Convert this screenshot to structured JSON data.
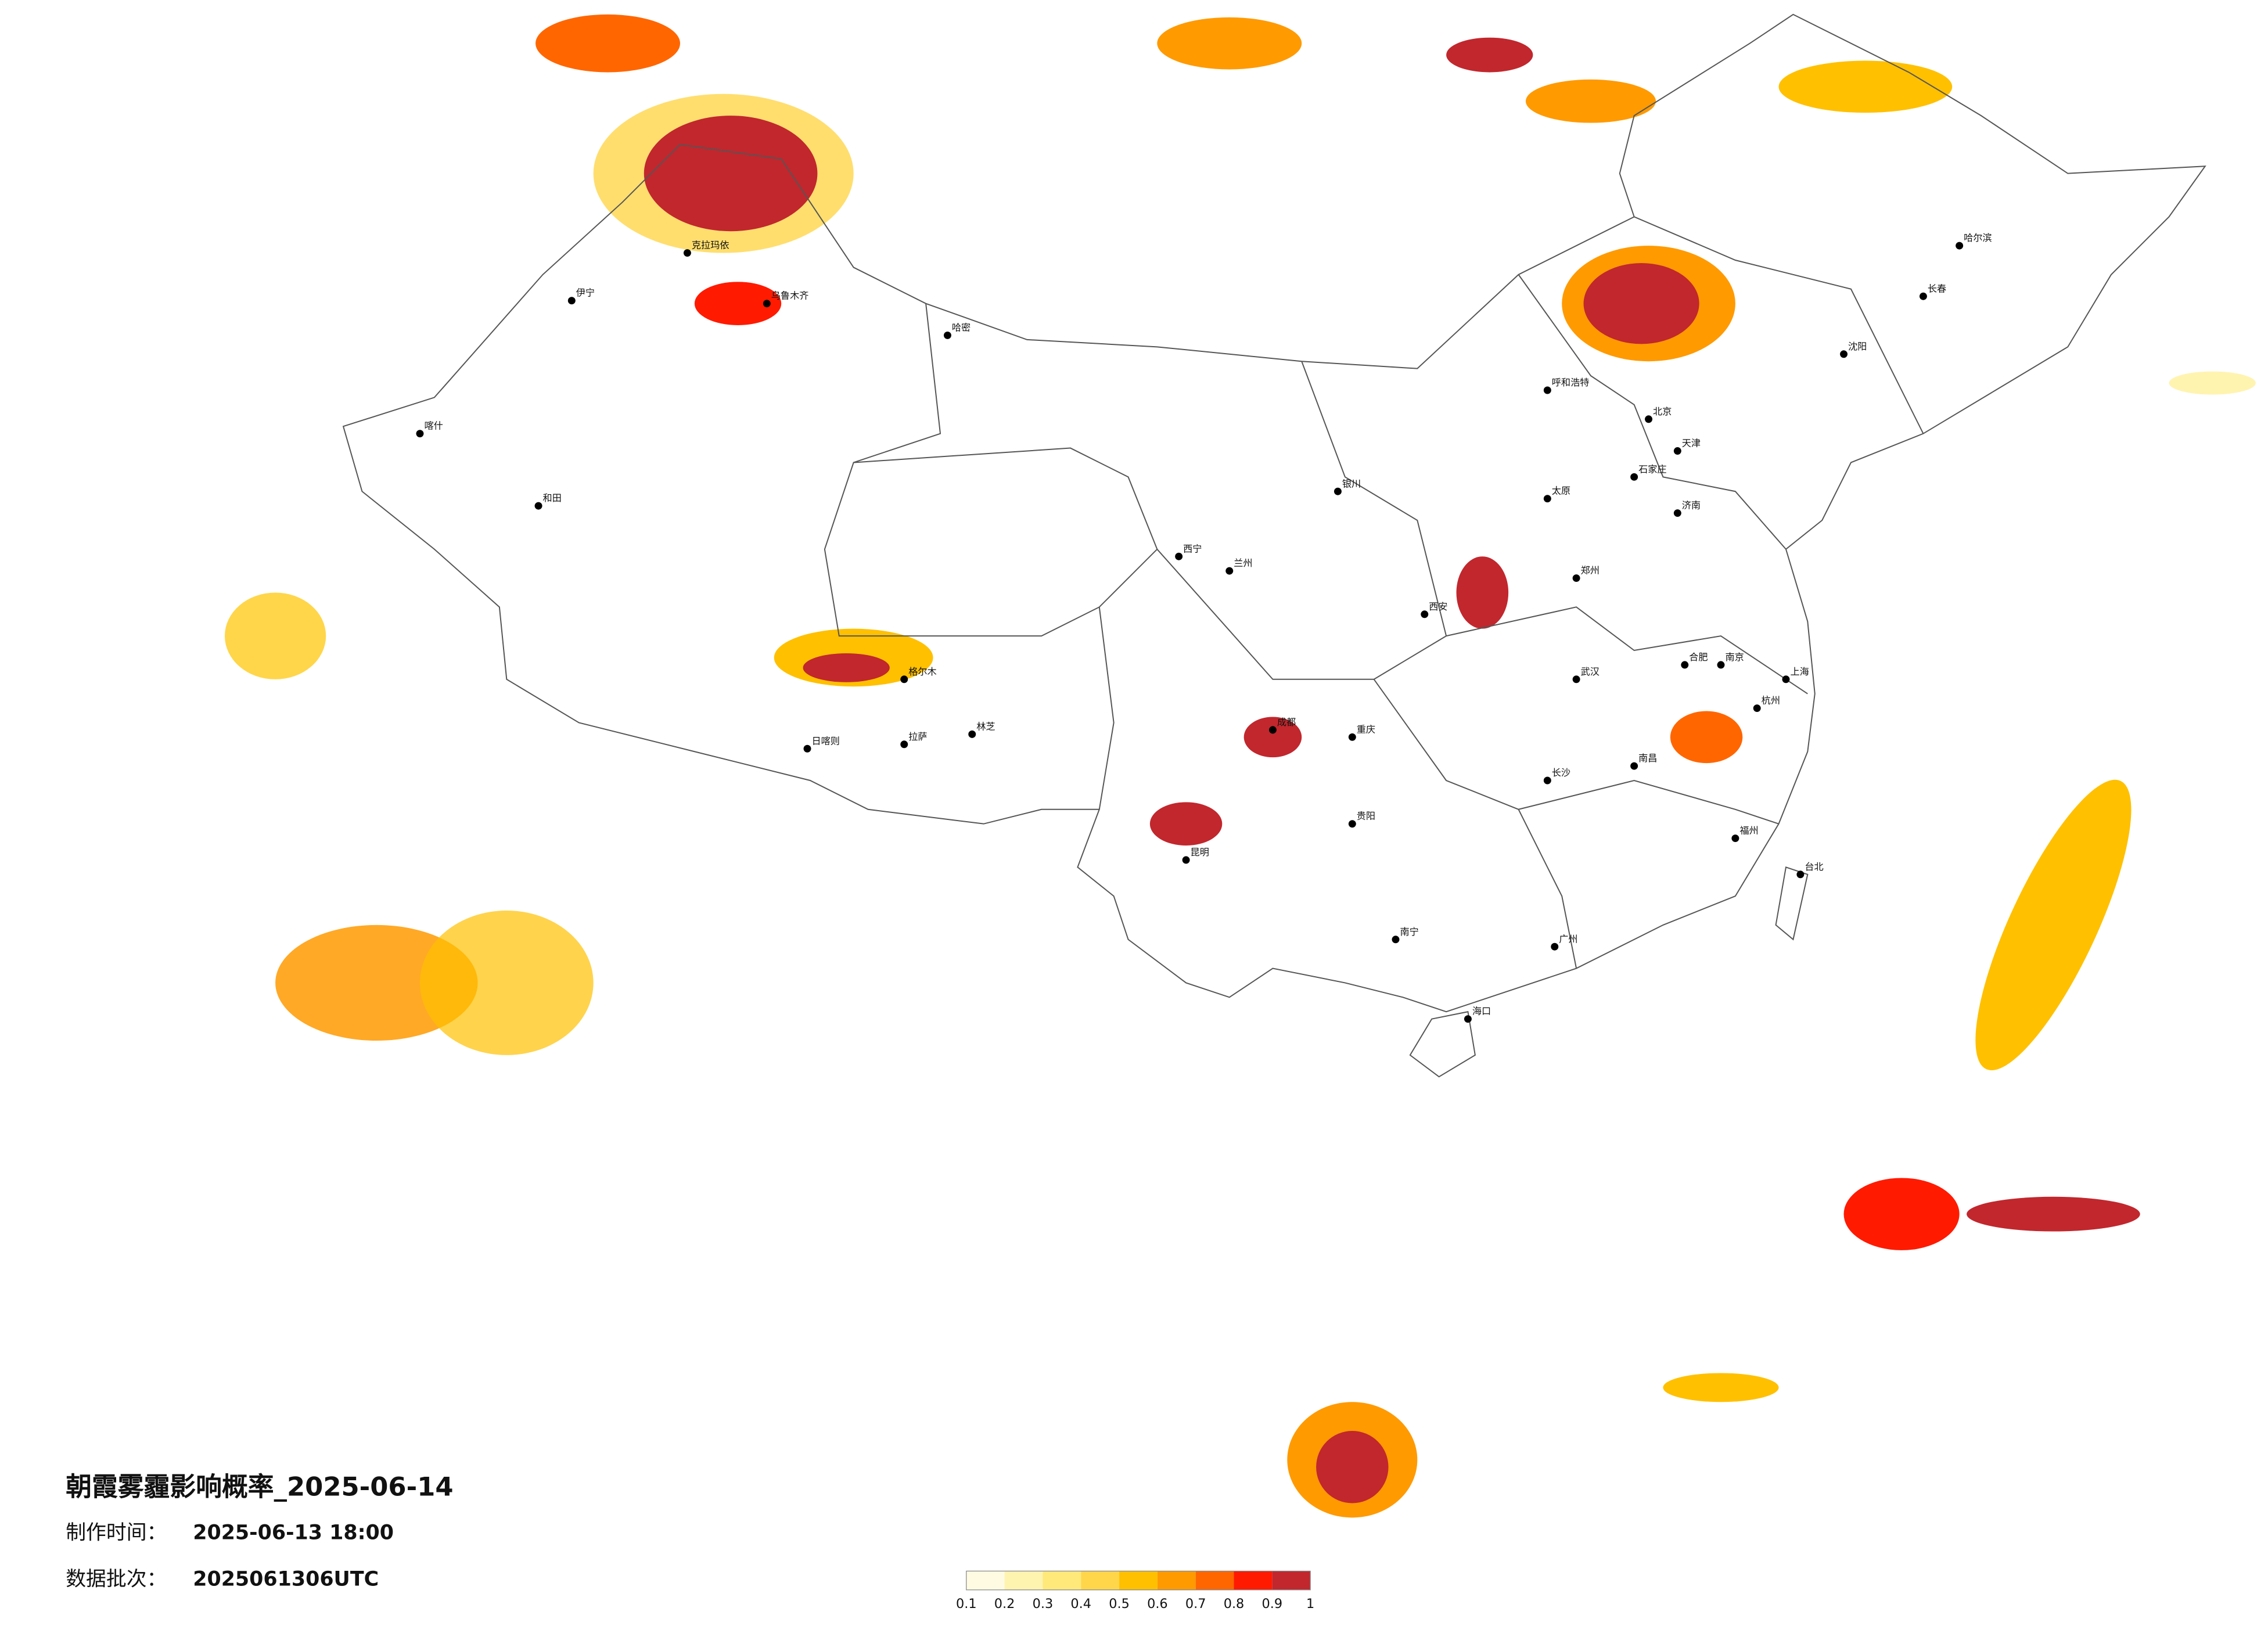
{
  "title": "朝霞雾霾影响概率_2025-06-14",
  "made_label": "制作时间：",
  "made_time": "2025-06-13 18:00",
  "batch_label": "数据批次：",
  "batch": "2025061306UTC",
  "legend": {
    "colors": [
      "#fffbe3",
      "#fff3b0",
      "#ffe97a",
      "#ffd64a",
      "#ffc000",
      "#ff9a00",
      "#ff6600",
      "#ff1a00",
      "#c1272d"
    ],
    "ticks": [
      0.1,
      0.2,
      0.3,
      0.4,
      0.5,
      0.6,
      0.7,
      0.8,
      0.9,
      1
    ]
  },
  "cities": [
    "北京",
    "天津",
    "上海",
    "广州",
    "重庆",
    "成都",
    "武汉",
    "西安",
    "拉萨",
    "乌鲁木齐",
    "哈尔滨",
    "长春",
    "沈阳",
    "呼和浩特",
    "兰州",
    "西宁",
    "银川",
    "昆明",
    "贵阳",
    "南宁",
    "海口",
    "台北",
    "郑州",
    "济南",
    "南京",
    "杭州",
    "福州",
    "长沙",
    "南昌",
    "合肥",
    "石家庄",
    "太原",
    "伊宁",
    "和田",
    "格尔木",
    "日喀则",
    "林芝",
    "克拉玛依",
    "哈密",
    "喀什"
  ]
}
